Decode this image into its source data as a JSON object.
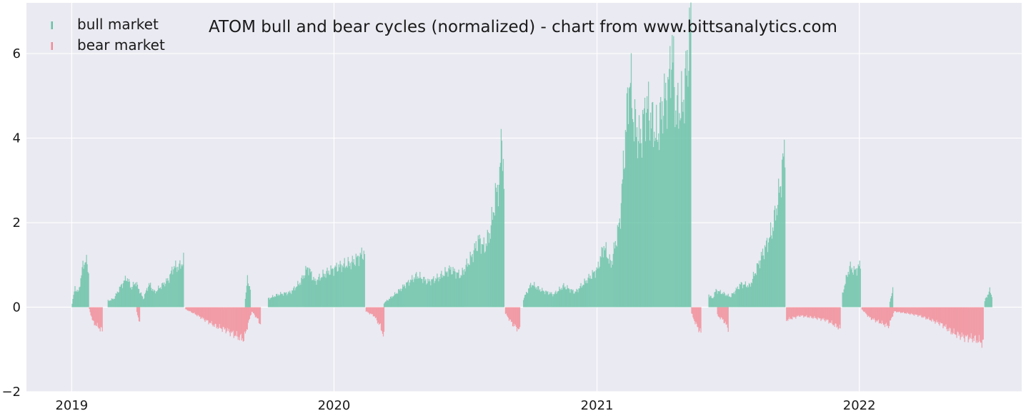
{
  "chart_data": {
    "type": "bar",
    "title": "ATOM bull and bear cycles (normalized)  - chart from www.bittsanalytics.com",
    "xlabel": "",
    "ylabel": "",
    "x_range": [
      "2018-10-30",
      "2022-08-15"
    ],
    "ylim": [
      -2,
      7.2
    ],
    "y_ticks": [
      -2,
      0,
      2,
      4,
      6
    ],
    "x_ticks": [
      {
        "date": "2019-01-01",
        "label": "2019"
      },
      {
        "date": "2020-01-01",
        "label": "2020"
      },
      {
        "date": "2021-01-01",
        "label": "2021"
      },
      {
        "date": "2022-01-01",
        "label": "2022"
      }
    ],
    "grid": true,
    "legend_position": "top-left",
    "background_color": "#eaeaf2",
    "series": [
      {
        "name": "bull market",
        "color": "#66c2a5",
        "points": [
          [
            "2019-01-01",
            0.1
          ],
          [
            "2019-01-05",
            0.45
          ],
          [
            "2019-01-10",
            0.35
          ],
          [
            "2019-01-15",
            0.9
          ],
          [
            "2019-01-20",
            1.15
          ],
          [
            "2019-01-24",
            0.8
          ],
          [
            "2019-02-20",
            0.15
          ],
          [
            "2019-02-28",
            0.2
          ],
          [
            "2019-03-10",
            0.5
          ],
          [
            "2019-03-18",
            0.7
          ],
          [
            "2019-03-25",
            0.45
          ],
          [
            "2019-03-30",
            0.6
          ],
          [
            "2019-04-10",
            0.2
          ],
          [
            "2019-04-18",
            0.55
          ],
          [
            "2019-04-26",
            0.35
          ],
          [
            "2019-05-05",
            0.5
          ],
          [
            "2019-05-15",
            0.65
          ],
          [
            "2019-05-22",
            0.95
          ],
          [
            "2019-05-30",
            0.95
          ],
          [
            "2019-06-05",
            1.1
          ],
          [
            "2019-08-30",
            0.2
          ],
          [
            "2019-09-02",
            0.65
          ],
          [
            "2019-09-06",
            0.45
          ],
          [
            "2019-10-01",
            0.2
          ],
          [
            "2019-10-15",
            0.3
          ],
          [
            "2019-11-01",
            0.35
          ],
          [
            "2019-11-15",
            0.6
          ],
          [
            "2019-11-25",
            0.95
          ],
          [
            "2019-12-05",
            0.6
          ],
          [
            "2019-12-15",
            0.75
          ],
          [
            "2019-12-25",
            0.85
          ],
          [
            "2020-01-05",
            0.95
          ],
          [
            "2020-01-15",
            1.0
          ],
          [
            "2020-01-25",
            1.05
          ],
          [
            "2020-02-05",
            1.2
          ],
          [
            "2020-02-12",
            1.3
          ],
          [
            "2020-03-10",
            0.1
          ],
          [
            "2020-03-25",
            0.3
          ],
          [
            "2020-04-10",
            0.55
          ],
          [
            "2020-04-25",
            0.75
          ],
          [
            "2020-05-10",
            0.6
          ],
          [
            "2020-05-25",
            0.7
          ],
          [
            "2020-06-10",
            0.9
          ],
          [
            "2020-06-25",
            0.75
          ],
          [
            "2020-07-10",
            1.2
          ],
          [
            "2020-07-20",
            1.6
          ],
          [
            "2020-07-28",
            1.4
          ],
          [
            "2020-08-05",
            1.8
          ],
          [
            "2020-08-12",
            2.6
          ],
          [
            "2020-08-18",
            3.0
          ],
          [
            "2020-08-21",
            4.25
          ],
          [
            "2020-08-24",
            2.8
          ],
          [
            "2020-09-20",
            0.2
          ],
          [
            "2020-10-01",
            0.55
          ],
          [
            "2020-10-15",
            0.4
          ],
          [
            "2020-11-01",
            0.3
          ],
          [
            "2020-11-15",
            0.5
          ],
          [
            "2020-12-01",
            0.35
          ],
          [
            "2020-12-15",
            0.6
          ],
          [
            "2021-01-01",
            0.9
          ],
          [
            "2021-01-10",
            1.45
          ],
          [
            "2021-01-20",
            1.0
          ],
          [
            "2021-02-01",
            2.0
          ],
          [
            "2021-02-05",
            3.0
          ],
          [
            "2021-02-10",
            4.3
          ],
          [
            "2021-02-15",
            5.5
          ],
          [
            "2021-02-20",
            4.5
          ],
          [
            "2021-03-01",
            3.9
          ],
          [
            "2021-03-10",
            4.8
          ],
          [
            "2021-03-20",
            4.3
          ],
          [
            "2021-03-25",
            4.0
          ],
          [
            "2021-04-01",
            4.7
          ],
          [
            "2021-04-10",
            5.2
          ],
          [
            "2021-04-15",
            6.2
          ],
          [
            "2021-04-20",
            4.6
          ],
          [
            "2021-04-30",
            4.8
          ],
          [
            "2021-05-05",
            5.6
          ],
          [
            "2021-05-10",
            6.5
          ],
          [
            "2021-05-11",
            6.7
          ],
          [
            "2021-06-05",
            0.3
          ],
          [
            "2021-06-10",
            0.2
          ],
          [
            "2021-06-15",
            0.4
          ],
          [
            "2021-07-05",
            0.25
          ],
          [
            "2021-07-20",
            0.55
          ],
          [
            "2021-08-01",
            0.5
          ],
          [
            "2021-08-15",
            1.1
          ],
          [
            "2021-08-25",
            1.5
          ],
          [
            "2021-09-01",
            1.8
          ],
          [
            "2021-09-10",
            2.6
          ],
          [
            "2021-09-15",
            3.2
          ],
          [
            "2021-09-19",
            3.9
          ],
          [
            "2021-12-08",
            0.3
          ],
          [
            "2021-12-12",
            0.6
          ],
          [
            "2021-12-18",
            0.95
          ],
          [
            "2021-12-25",
            0.85
          ],
          [
            "2022-01-02",
            1.0
          ],
          [
            "2022-02-12",
            0.15
          ],
          [
            "2022-02-16",
            0.4
          ],
          [
            "2022-06-24",
            0.15
          ],
          [
            "2022-07-01",
            0.4
          ],
          [
            "2022-07-04",
            0.25
          ]
        ]
      },
      {
        "name": "bear market",
        "color": "#f28b96",
        "points": [
          [
            "2019-01-25",
            -0.05
          ],
          [
            "2019-01-30",
            -0.35
          ],
          [
            "2019-02-05",
            -0.45
          ],
          [
            "2019-02-12",
            -0.55
          ],
          [
            "2019-04-01",
            -0.1
          ],
          [
            "2019-04-05",
            -0.4
          ],
          [
            "2019-06-08",
            -0.05
          ],
          [
            "2019-06-20",
            -0.15
          ],
          [
            "2019-07-05",
            -0.3
          ],
          [
            "2019-07-20",
            -0.45
          ],
          [
            "2019-08-05",
            -0.55
          ],
          [
            "2019-08-20",
            -0.7
          ],
          [
            "2019-08-28",
            -0.75
          ],
          [
            "2019-09-08",
            -0.1
          ],
          [
            "2019-09-15",
            -0.25
          ],
          [
            "2019-09-20",
            -0.4
          ],
          [
            "2020-02-14",
            -0.1
          ],
          [
            "2020-02-25",
            -0.2
          ],
          [
            "2020-03-05",
            -0.45
          ],
          [
            "2020-03-10",
            -0.7
          ],
          [
            "2020-08-26",
            -0.15
          ],
          [
            "2020-09-05",
            -0.4
          ],
          [
            "2020-09-15",
            -0.55
          ],
          [
            "2021-05-12",
            -0.15
          ],
          [
            "2021-05-18",
            -0.4
          ],
          [
            "2021-05-25",
            -0.6
          ],
          [
            "2021-06-17",
            -0.2
          ],
          [
            "2021-06-25",
            -0.3
          ],
          [
            "2021-07-02",
            -0.5
          ],
          [
            "2021-09-21",
            -0.3
          ],
          [
            "2021-10-10",
            -0.2
          ],
          [
            "2021-10-30",
            -0.25
          ],
          [
            "2021-11-15",
            -0.3
          ],
          [
            "2021-11-25",
            -0.4
          ],
          [
            "2021-12-05",
            -0.5
          ],
          [
            "2022-01-04",
            -0.05
          ],
          [
            "2022-01-15",
            -0.25
          ],
          [
            "2022-01-28",
            -0.35
          ],
          [
            "2022-02-10",
            -0.45
          ],
          [
            "2022-02-18",
            -0.1
          ],
          [
            "2022-03-10",
            -0.15
          ],
          [
            "2022-03-25",
            -0.2
          ],
          [
            "2022-04-10",
            -0.3
          ],
          [
            "2022-04-25",
            -0.4
          ],
          [
            "2022-05-10",
            -0.6
          ],
          [
            "2022-05-25",
            -0.7
          ],
          [
            "2022-06-10",
            -0.75
          ],
          [
            "2022-06-22",
            -0.85
          ]
        ]
      }
    ]
  }
}
